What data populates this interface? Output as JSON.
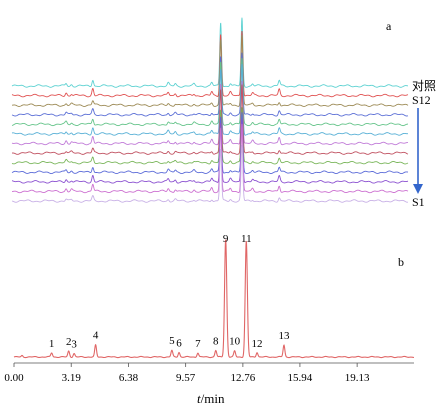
{
  "chart_data": [
    {
      "panel": "a",
      "type": "line",
      "panel_label": "a",
      "trace_labels": {
        "top": "对照",
        "second": "S12",
        "bottom": "S1"
      },
      "series_colors": [
        "#5bd1d1",
        "#e05050",
        "#9c8a55",
        "#5b6fd6",
        "#65c48a",
        "#58b0d6",
        "#c07ad8",
        "#c05060",
        "#7ab65b",
        "#5a6ad8",
        "#8a4fd0",
        "#cc6fd0",
        "#c8b0e6"
      ],
      "arrow_color": "#3366cc",
      "x": {
        "min": 0,
        "max": 22.3,
        "unit": "min"
      },
      "main_peaks_min": [
        11.75,
        12.95
      ]
    },
    {
      "panel": "b",
      "type": "line",
      "panel_label": "b",
      "line_color": "#e06666",
      "xlabel_italic": "t",
      "xlabel_rest": "/min",
      "x_ticks": [
        0.0,
        3.19,
        6.38,
        9.57,
        12.76,
        15.94,
        19.13
      ],
      "x_tick_labels": [
        "0.00",
        "3.19",
        "6.38",
        "9.57",
        "12.76",
        "15.94",
        "19.13"
      ],
      "xlim": [
        0,
        22.3
      ],
      "peaks": [
        {
          "label": "1",
          "t": 2.1,
          "height": 0.035
        },
        {
          "label": "2",
          "t": 3.05,
          "height": 0.05
        },
        {
          "label": "3",
          "t": 3.35,
          "height": 0.03
        },
        {
          "label": "4",
          "t": 4.55,
          "height": 0.1
        },
        {
          "label": "5",
          "t": 8.8,
          "height": 0.055
        },
        {
          "label": "6",
          "t": 9.2,
          "height": 0.04
        },
        {
          "label": "7",
          "t": 10.25,
          "height": 0.035
        },
        {
          "label": "8",
          "t": 11.25,
          "height": 0.055
        },
        {
          "label": "9",
          "t": 11.8,
          "height": 1.0
        },
        {
          "label": "10",
          "t": 12.3,
          "height": 0.05
        },
        {
          "label": "11",
          "t": 12.95,
          "height": 0.98
        },
        {
          "label": "12",
          "t": 13.55,
          "height": 0.04
        },
        {
          "label": "13",
          "t": 15.05,
          "height": 0.1
        }
      ]
    }
  ]
}
